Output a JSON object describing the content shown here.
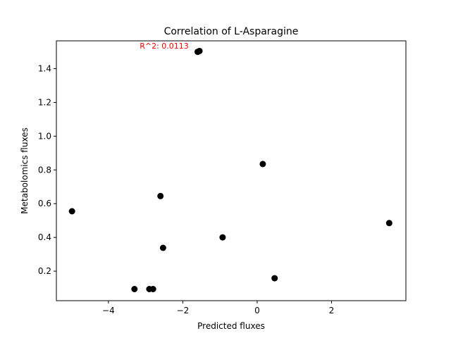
{
  "chart_data": {
    "type": "scatter",
    "title": "Correlation of L-Asparagine",
    "xlabel": "Predicted fluxes",
    "ylabel": "Metabolomics fluxes",
    "xlim": [
      -5.4,
      4.0
    ],
    "ylim": [
      0.025,
      1.565
    ],
    "xticks": [
      -4,
      -2,
      0,
      2
    ],
    "xtick_labels": [
      "−4",
      "−2",
      "0",
      "2"
    ],
    "yticks": [
      0.2,
      0.4,
      0.6,
      0.8,
      1.0,
      1.2,
      1.4
    ],
    "ytick_labels": [
      "0.2",
      "0.4",
      "0.6",
      "0.8",
      "1.0",
      "1.2",
      "1.4"
    ],
    "grid": false,
    "marker_color": "#000000",
    "annotation": {
      "text": "R^2: 0.0113",
      "x": -2.5,
      "y": 1.52,
      "color": "#ff0000"
    },
    "points": [
      {
        "x": -4.98,
        "y": 0.555
      },
      {
        "x": -3.3,
        "y": 0.094
      },
      {
        "x": -2.9,
        "y": 0.094
      },
      {
        "x": -2.8,
        "y": 0.094
      },
      {
        "x": -2.6,
        "y": 0.645
      },
      {
        "x": -2.53,
        "y": 0.338
      },
      {
        "x": -1.6,
        "y": 1.5
      },
      {
        "x": -1.55,
        "y": 1.505
      },
      {
        "x": -0.93,
        "y": 0.4
      },
      {
        "x": 0.15,
        "y": 0.835
      },
      {
        "x": 0.47,
        "y": 0.158
      },
      {
        "x": 3.55,
        "y": 0.485
      }
    ]
  }
}
